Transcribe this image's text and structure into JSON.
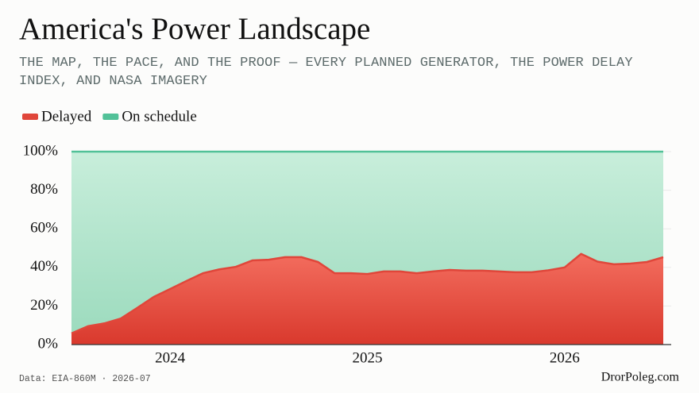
{
  "chart_data": {
    "type": "stacked_area",
    "title": "America's Power Landscape",
    "subtitle": "THE MAP, THE PACE, AND THE PROOF — EVERY PLANNED GENERATOR, THE POWER DELAY INDEX, AND NASA IMAGERY",
    "source": "Data: EIA-860M · 2026-07",
    "credit": "DrorPoleg.com",
    "categories": [
      null,
      null,
      null,
      null,
      null,
      null,
      "2024",
      null,
      null,
      null,
      null,
      null,
      null,
      null,
      null,
      null,
      null,
      null,
      "2025",
      null,
      null,
      null,
      null,
      null,
      null,
      null,
      null,
      null,
      null,
      null,
      "2026",
      null,
      null,
      null,
      null,
      null,
      null
    ],
    "series": [
      {
        "name": "Delayed",
        "color": "#e0463a",
        "values": [
          5.8,
          9.5,
          11,
          13.5,
          19,
          24.7,
          28.8,
          33,
          37,
          39,
          40.3,
          43.6,
          44,
          45.3,
          45.3,
          42.8,
          37,
          37,
          36.6,
          37.9,
          37.9,
          37,
          37.9,
          38.7,
          38.3,
          38.3,
          37.9,
          37.5,
          37.5,
          38.5,
          40,
          47,
          43,
          41.6,
          42,
          42.8,
          45.3
        ]
      },
      {
        "name": "On schedule",
        "color": "#52c198",
        "values": [
          94.2,
          90.5,
          89,
          86.5,
          81,
          75.3,
          71.2,
          67,
          63,
          61,
          59.7,
          56.4,
          56,
          54.7,
          54.7,
          57.2,
          63,
          63,
          63.4,
          62.1,
          62.1,
          63,
          62.1,
          61.3,
          61.7,
          61.7,
          62.1,
          62.5,
          62.5,
          61.5,
          60,
          53,
          57,
          58.4,
          58,
          57.2,
          54.7
        ]
      }
    ],
    "ylim": [
      0,
      100
    ],
    "yticks": [
      {
        "value": 0,
        "label": "0%"
      },
      {
        "value": 20,
        "label": "20%"
      },
      {
        "value": 40,
        "label": "40%"
      },
      {
        "value": 60,
        "label": "60%"
      },
      {
        "value": 80,
        "label": "80%"
      },
      {
        "value": 100,
        "label": "100%"
      }
    ],
    "grid": true,
    "legend": "top-left"
  }
}
